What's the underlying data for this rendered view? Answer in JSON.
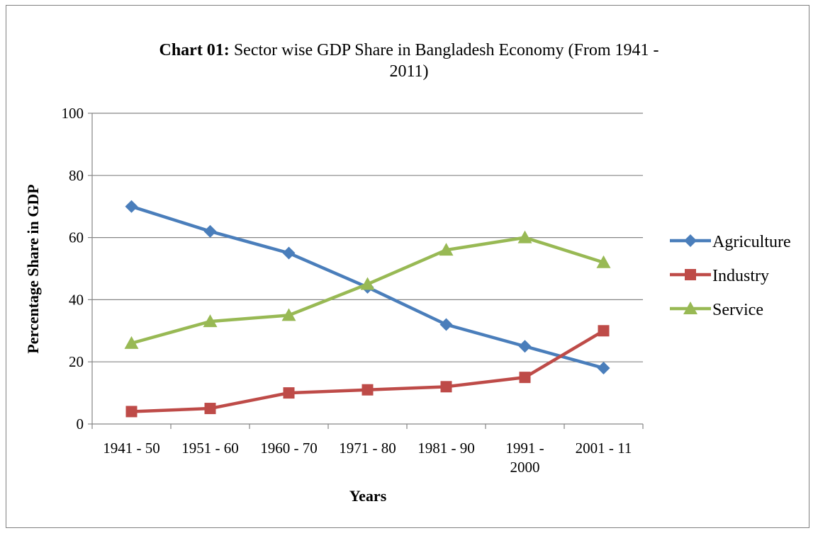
{
  "chart_data": {
    "type": "line",
    "title_bold": "Chart 01:",
    "title_rest_line1": " Sector wise GDP Share in Bangladesh Economy (From 1941 -",
    "title_line2": "2011)",
    "xlabel": "Years",
    "ylabel": "Percentage Share in GDP",
    "ylim": [
      0,
      100
    ],
    "yticks": [
      "0",
      "20",
      "40",
      "60",
      "80",
      "100"
    ],
    "categories": [
      [
        "1941 - 50"
      ],
      [
        "1951 - 60"
      ],
      [
        "1960 - 70"
      ],
      [
        "1971 - 80"
      ],
      [
        "1981 - 90"
      ],
      [
        "1991 -",
        "2000"
      ],
      [
        "2001 - 11"
      ]
    ],
    "grid": true,
    "legend_position": "right",
    "series": [
      {
        "name": "Agriculture",
        "color": "#4a7ebb",
        "marker": "diamond",
        "values": [
          70,
          62,
          55,
          44,
          32,
          25,
          18
        ]
      },
      {
        "name": "Industry",
        "color": "#be4b48",
        "marker": "square",
        "values": [
          4,
          5,
          10,
          11,
          12,
          15,
          30
        ]
      },
      {
        "name": "Service",
        "color": "#98b954",
        "marker": "triangle",
        "values": [
          26,
          33,
          35,
          45,
          56,
          60,
          52
        ]
      }
    ]
  }
}
